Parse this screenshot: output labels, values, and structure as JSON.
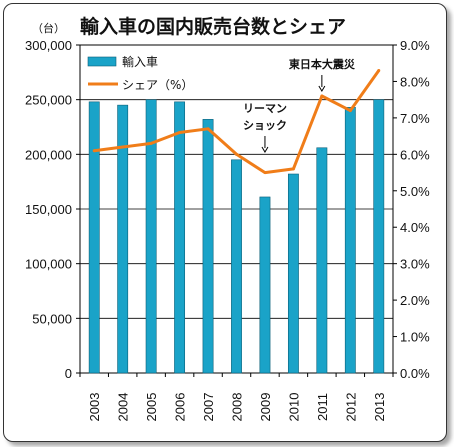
{
  "chart_data": {
    "type": "bar",
    "title": "輸入車の国内販売台数とシェア",
    "y_unit": "（台）",
    "categories": [
      "2003",
      "2004",
      "2005",
      "2006",
      "2007",
      "2008",
      "2009",
      "2010",
      "2011",
      "2012",
      "2013"
    ],
    "series": [
      {
        "name": "輸入車",
        "type": "bar",
        "axis": "left",
        "values": [
          248000,
          245000,
          250000,
          248000,
          232000,
          195000,
          161000,
          182000,
          206000,
          243000,
          250000
        ],
        "color": "#1aa3c8"
      },
      {
        "name": "シェア（%）",
        "type": "line",
        "axis": "right",
        "values": [
          6.1,
          6.2,
          6.3,
          6.6,
          6.7,
          6.0,
          5.5,
          5.6,
          7.6,
          7.2,
          8.3
        ],
        "color": "#f07d19"
      }
    ],
    "y_left": {
      "min": 0,
      "max": 300000,
      "step": 50000,
      "tick_labels": [
        "0",
        "50,000",
        "100,000",
        "150,000",
        "200,000",
        "250,000",
        "300,000"
      ]
    },
    "y_right": {
      "min": 0,
      "max": 9,
      "step": 1,
      "tick_labels": [
        "0.0%",
        "1.0%",
        "2.0%",
        "3.0%",
        "4.0%",
        "5.0%",
        "6.0%",
        "7.0%",
        "8.0%",
        "9.0%"
      ]
    },
    "grid": true,
    "legend_position": "top-left",
    "annotations": [
      {
        "lines": [
          "リーマン",
          "ショック"
        ],
        "category": "2009"
      },
      {
        "lines": [
          "東日本大震災"
        ],
        "category": "2011"
      }
    ]
  }
}
